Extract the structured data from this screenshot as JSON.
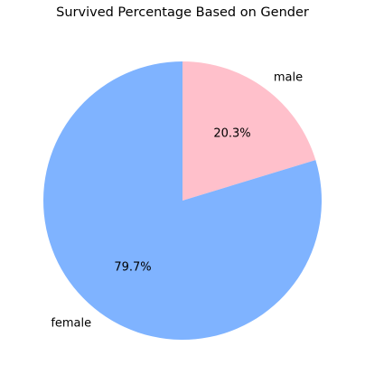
{
  "chart_data": {
    "type": "pie",
    "title": "Survived Percentage Based on Gender",
    "labels": [
      "male",
      "female"
    ],
    "values": [
      20.3,
      79.7
    ],
    "percent_labels": [
      "20.3%",
      "79.7%"
    ],
    "colors": [
      "#ffc0cb",
      "#7fb3ff"
    ],
    "start_angle_deg": 90,
    "direction": "clockwise"
  }
}
